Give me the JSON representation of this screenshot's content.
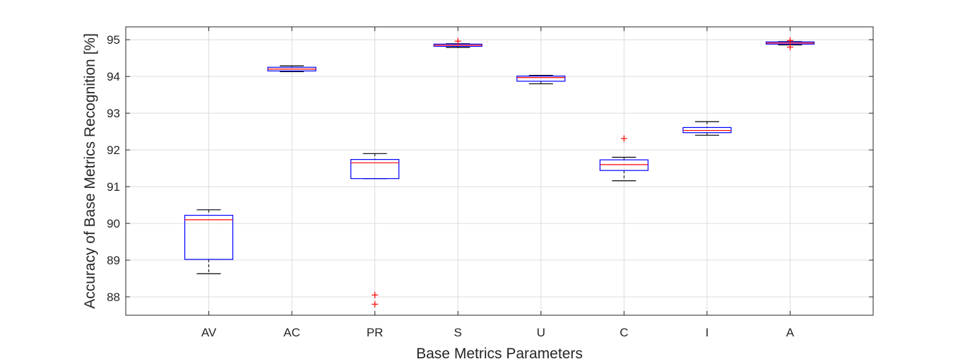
{
  "chart_data": {
    "type": "boxplot",
    "title": "",
    "xlabel": "Base Metrics Parameters",
    "ylabel": "Accuracy of Base Metrics Recognition [%]",
    "ylim": [
      87.5,
      95.35
    ],
    "yticks": [
      88,
      89,
      90,
      91,
      92,
      93,
      94,
      95
    ],
    "grid": true,
    "colors": {
      "box": "#0000ff",
      "median": "#ff0000",
      "whisker": "#000000",
      "outlier": "#ff0000",
      "grid": "#dcdcdc",
      "axis": "#262626"
    },
    "categories": [
      "AV",
      "AC",
      "PR",
      "S",
      "U",
      "C",
      "I",
      "A"
    ],
    "boxes": [
      {
        "category": "AV",
        "whisker_low": 88.63,
        "q1": 89.02,
        "median": 90.1,
        "q3": 90.22,
        "whisker_high": 90.37,
        "outliers": []
      },
      {
        "category": "AC",
        "whisker_low": 94.13,
        "q1": 94.15,
        "median": 94.2,
        "q3": 94.25,
        "whisker_high": 94.29,
        "outliers": []
      },
      {
        "category": "PR",
        "whisker_low": 91.22,
        "q1": 91.22,
        "median": 91.65,
        "q3": 91.74,
        "whisker_high": 91.9,
        "outliers": [
          88.05,
          87.8
        ]
      },
      {
        "category": "S",
        "whisker_low": 94.79,
        "q1": 94.82,
        "median": 94.85,
        "q3": 94.88,
        "whisker_high": 94.89,
        "outliers": [
          94.96
        ]
      },
      {
        "category": "U",
        "whisker_low": 93.8,
        "q1": 93.87,
        "median": 93.97,
        "q3": 94.01,
        "whisker_high": 94.03,
        "outliers": []
      },
      {
        "category": "C",
        "whisker_low": 91.16,
        "q1": 91.44,
        "median": 91.6,
        "q3": 91.73,
        "whisker_high": 91.8,
        "outliers": [
          92.31
        ]
      },
      {
        "category": "I",
        "whisker_low": 92.4,
        "q1": 92.47,
        "median": 92.53,
        "q3": 92.61,
        "whisker_high": 92.77,
        "outliers": []
      },
      {
        "category": "A",
        "whisker_low": 94.86,
        "q1": 94.88,
        "median": 94.91,
        "q3": 94.94,
        "whisker_high": 94.95,
        "outliers": [
          94.98,
          94.8
        ]
      }
    ]
  }
}
